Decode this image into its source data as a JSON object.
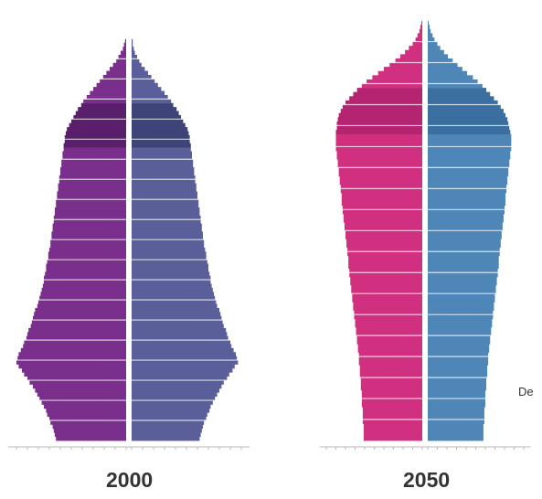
{
  "chart_data": [
    {
      "type": "bar",
      "orientation": "horizontal",
      "chart_kind": "population pyramid",
      "title": "2000",
      "ages": [
        0,
        100
      ],
      "age_step": 1,
      "xlim_each_side": [
        0,
        10
      ],
      "grid": true,
      "series": [
        {
          "side": "left",
          "color": "#7b2f8c",
          "highlight_color": "#5a1f6b",
          "values": [
            6.4,
            6.5,
            6.6,
            6.7,
            6.9,
            7.0,
            7.2,
            7.3,
            7.5,
            7.7,
            7.9,
            8.1,
            8.3,
            8.5,
            8.8,
            9.0,
            9.3,
            9.5,
            9.8,
            10.0,
            9.9,
            9.8,
            9.6,
            9.4,
            9.3,
            9.1,
            9.0,
            8.9,
            8.7,
            8.6,
            8.5,
            8.4,
            8.3,
            8.1,
            8.0,
            7.9,
            7.8,
            7.7,
            7.6,
            7.5,
            7.5,
            7.4,
            7.3,
            7.3,
            7.2,
            7.1,
            7.1,
            7.0,
            6.9,
            6.9,
            6.8,
            6.8,
            6.7,
            6.7,
            6.6,
            6.6,
            6.5,
            6.5,
            6.4,
            6.4,
            6.3,
            6.3,
            6.2,
            6.2,
            6.1,
            6.1,
            6.0,
            6.0,
            5.9,
            5.9,
            5.8,
            5.8,
            5.7,
            5.7,
            5.6,
            5.6,
            5.5,
            5.4,
            5.2,
            5.0,
            4.8,
            4.6,
            4.4,
            4.1,
            3.9,
            3.6,
            3.3,
            3.0,
            2.7,
            2.4,
            2.1,
            1.8,
            1.5,
            1.2,
            0.9,
            0.7,
            0.5,
            0.3,
            0.2,
            0.1,
            0.0
          ]
        },
        {
          "side": "right",
          "color": "#5a5f9a",
          "highlight_color": "#3e4478",
          "values": [
            6.2,
            6.3,
            6.4,
            6.5,
            6.6,
            6.8,
            6.9,
            7.1,
            7.2,
            7.4,
            7.6,
            7.8,
            8.0,
            8.2,
            8.4,
            8.7,
            8.9,
            9.2,
            9.4,
            9.7,
            9.6,
            9.5,
            9.3,
            9.1,
            9.0,
            8.8,
            8.7,
            8.6,
            8.4,
            8.3,
            8.2,
            8.1,
            8.0,
            7.8,
            7.7,
            7.6,
            7.5,
            7.4,
            7.3,
            7.2,
            7.2,
            7.1,
            7.0,
            7.0,
            6.9,
            6.8,
            6.8,
            6.7,
            6.6,
            6.6,
            6.5,
            6.5,
            6.4,
            6.4,
            6.3,
            6.3,
            6.2,
            6.2,
            6.1,
            6.1,
            6.0,
            6.0,
            5.9,
            5.9,
            5.8,
            5.8,
            5.7,
            5.7,
            5.6,
            5.6,
            5.5,
            5.5,
            5.4,
            5.4,
            5.3,
            5.3,
            5.2,
            5.1,
            4.9,
            4.7,
            4.5,
            4.3,
            4.1,
            3.8,
            3.6,
            3.3,
            3.0,
            2.7,
            2.4,
            2.1,
            1.8,
            1.5,
            1.2,
            0.9,
            0.7,
            0.5,
            0.3,
            0.2,
            0.1,
            0.1,
            0.0
          ]
        }
      ]
    },
    {
      "type": "bar",
      "orientation": "horizontal",
      "chart_kind": "population pyramid",
      "title": "2050",
      "ages": [
        0,
        100
      ],
      "age_step": 1,
      "xlim_each_side": [
        0,
        10
      ],
      "grid": true,
      "series": [
        {
          "side": "left",
          "color": "#d0307f",
          "highlight_color": "#b52470",
          "values": [
            6.1,
            6.1,
            6.1,
            6.1,
            6.2,
            6.2,
            6.2,
            6.2,
            6.3,
            6.3,
            6.3,
            6.3,
            6.4,
            6.4,
            6.4,
            6.5,
            6.5,
            6.5,
            6.6,
            6.6,
            6.6,
            6.7,
            6.7,
            6.8,
            6.8,
            6.9,
            6.9,
            7.0,
            7.0,
            7.1,
            7.1,
            7.2,
            7.2,
            7.3,
            7.3,
            7.4,
            7.4,
            7.5,
            7.5,
            7.6,
            7.6,
            7.7,
            7.7,
            7.7,
            7.8,
            7.8,
            7.9,
            7.9,
            8.0,
            8.0,
            8.1,
            8.1,
            8.2,
            8.2,
            8.3,
            8.3,
            8.4,
            8.4,
            8.4,
            8.5,
            8.5,
            8.6,
            8.6,
            8.7,
            8.7,
            8.8,
            8.8,
            8.9,
            8.9,
            9.0,
            9.0,
            9.0,
            9.0,
            9.0,
            8.9,
            8.9,
            8.8,
            8.7,
            8.5,
            8.3,
            8.0,
            7.6,
            7.2,
            6.8,
            6.3,
            5.8,
            5.2,
            4.6,
            4.0,
            3.4,
            2.8,
            2.3,
            1.8,
            1.4,
            1.0,
            0.7,
            0.5,
            0.3,
            0.2,
            0.1,
            0.0
          ]
        },
        {
          "side": "right",
          "color": "#4f86b8",
          "highlight_color": "#3a6f9f",
          "values": [
            5.8,
            5.8,
            5.8,
            5.8,
            5.9,
            5.9,
            5.9,
            5.9,
            6.0,
            6.0,
            6.0,
            6.0,
            6.1,
            6.1,
            6.1,
            6.2,
            6.2,
            6.2,
            6.3,
            6.3,
            6.3,
            6.4,
            6.4,
            6.5,
            6.5,
            6.6,
            6.6,
            6.7,
            6.7,
            6.8,
            6.8,
            6.9,
            6.9,
            7.0,
            7.0,
            7.1,
            7.1,
            7.2,
            7.2,
            7.3,
            7.3,
            7.4,
            7.4,
            7.4,
            7.5,
            7.5,
            7.6,
            7.6,
            7.7,
            7.7,
            7.8,
            7.8,
            7.9,
            7.9,
            8.0,
            8.0,
            8.1,
            8.1,
            8.1,
            8.2,
            8.2,
            8.3,
            8.3,
            8.4,
            8.4,
            8.5,
            8.5,
            8.6,
            8.6,
            8.7,
            8.7,
            8.7,
            8.7,
            8.6,
            8.5,
            8.4,
            8.3,
            8.1,
            7.9,
            7.6,
            7.3,
            6.9,
            6.5,
            6.1,
            5.7,
            5.2,
            4.7,
            4.1,
            3.6,
            3.1,
            2.6,
            2.1,
            1.7,
            1.3,
            1.0,
            0.7,
            0.5,
            0.3,
            0.2,
            0.1,
            0.0
          ]
        }
      ]
    }
  ],
  "captions": {
    "left": "2000",
    "right": "2050"
  },
  "side_label": "De"
}
